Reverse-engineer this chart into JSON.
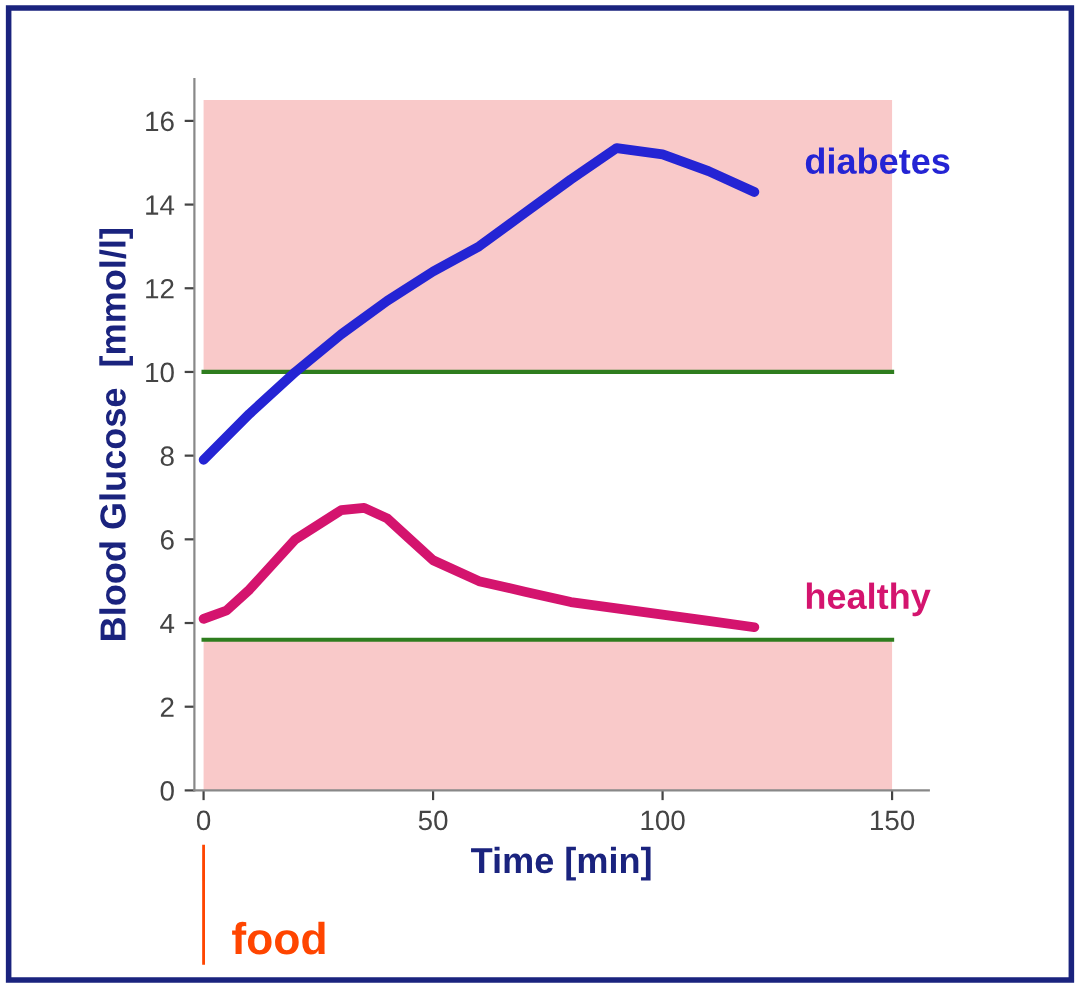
{
  "chart_data": {
    "type": "line",
    "xlabel": "Time [min]",
    "ylabel": "Blood Glucose  [mmol/l]",
    "series": [
      {
        "name": "diabetes",
        "color": "#2424d4",
        "x": [
          0,
          10,
          20,
          30,
          40,
          50,
          60,
          70,
          80,
          90,
          100,
          110,
          120
        ],
        "values": [
          7.9,
          9.0,
          10.0,
          10.9,
          11.7,
          12.4,
          13.0,
          13.8,
          14.6,
          15.35,
          15.2,
          14.8,
          14.3
        ]
      },
      {
        "name": "healthy",
        "color": "#d4146e",
        "x": [
          0,
          5,
          10,
          20,
          30,
          35,
          40,
          45,
          50,
          60,
          70,
          80,
          90,
          100,
          110,
          120
        ],
        "values": [
          4.1,
          4.3,
          4.8,
          6.0,
          6.7,
          6.75,
          6.5,
          6.0,
          5.5,
          5.0,
          4.75,
          4.5,
          4.35,
          4.2,
          4.05,
          3.9
        ]
      }
    ],
    "xlim": [
      -2,
      158
    ],
    "ylim": [
      0,
      17
    ],
    "xticks": [
      0,
      50,
      100,
      150
    ],
    "yticks": [
      0,
      2,
      4,
      6,
      8,
      10,
      12,
      14,
      16
    ],
    "bands": [
      {
        "axis": "y",
        "from": 0,
        "to": 3.6,
        "color": "#f9c9c9"
      },
      {
        "axis": "y",
        "from": 10,
        "to": 16.5,
        "color": "#f9c9c9"
      }
    ],
    "ref_lines": [
      {
        "axis": "y",
        "value": 3.6,
        "color": "#2e7d1e"
      },
      {
        "axis": "y",
        "value": 10,
        "color": "#2e7d1e"
      }
    ],
    "annotations": [
      "food"
    ],
    "grid": false,
    "legend": false,
    "marker": "none",
    "line_style": "solid"
  }
}
